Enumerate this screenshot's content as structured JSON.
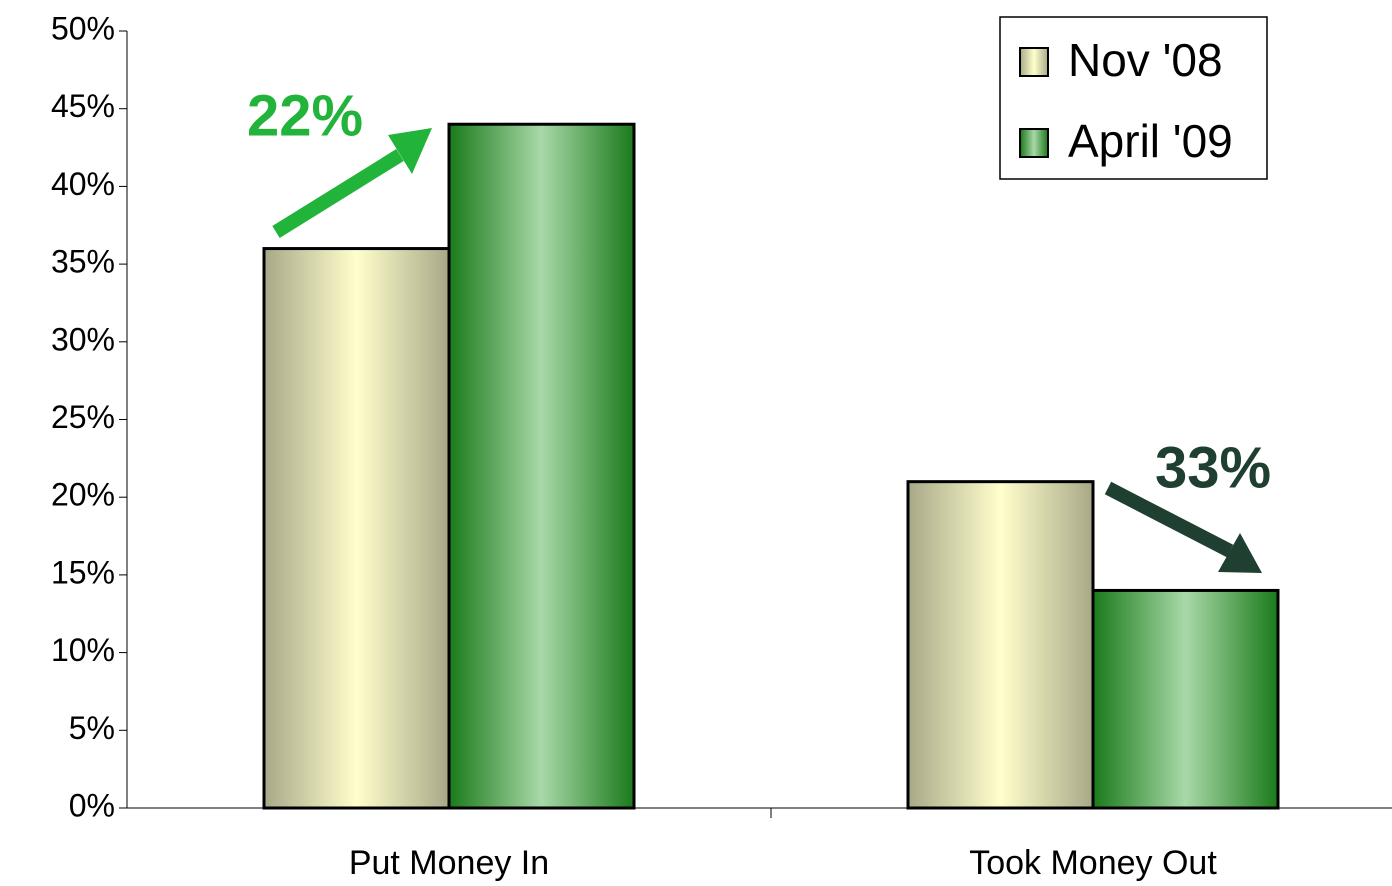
{
  "chart_data": {
    "type": "bar",
    "categories": [
      "Put Money In",
      "Took Money Out"
    ],
    "series": [
      {
        "name": "Nov '08",
        "color": [
          "#a8a888",
          "#ffffcc",
          "#a8a888"
        ],
        "values": [
          36,
          21
        ]
      },
      {
        "name": "April '09",
        "color": [
          "#1a7a1a",
          "#a8d8a8",
          "#1a7a1a"
        ],
        "values": [
          44,
          14
        ]
      }
    ],
    "ylim": [
      0,
      50
    ],
    "yticks": [
      {
        "value": 0,
        "label": "0%"
      },
      {
        "value": 5,
        "label": "5%"
      },
      {
        "value": 10,
        "label": "10%"
      },
      {
        "value": 15,
        "label": "15%"
      },
      {
        "value": 20,
        "label": "20%"
      },
      {
        "value": 25,
        "label": "25%"
      },
      {
        "value": 30,
        "label": "30%"
      },
      {
        "value": 35,
        "label": "35%"
      },
      {
        "value": 40,
        "label": "40%"
      },
      {
        "value": 45,
        "label": "45%"
      },
      {
        "value": 50,
        "label": "50%"
      }
    ],
    "legend": "top-right",
    "annotations": [
      {
        "text": "22%",
        "color": "#22b33a"
      },
      {
        "text": "33%",
        "color": "#1f4030"
      }
    ]
  }
}
